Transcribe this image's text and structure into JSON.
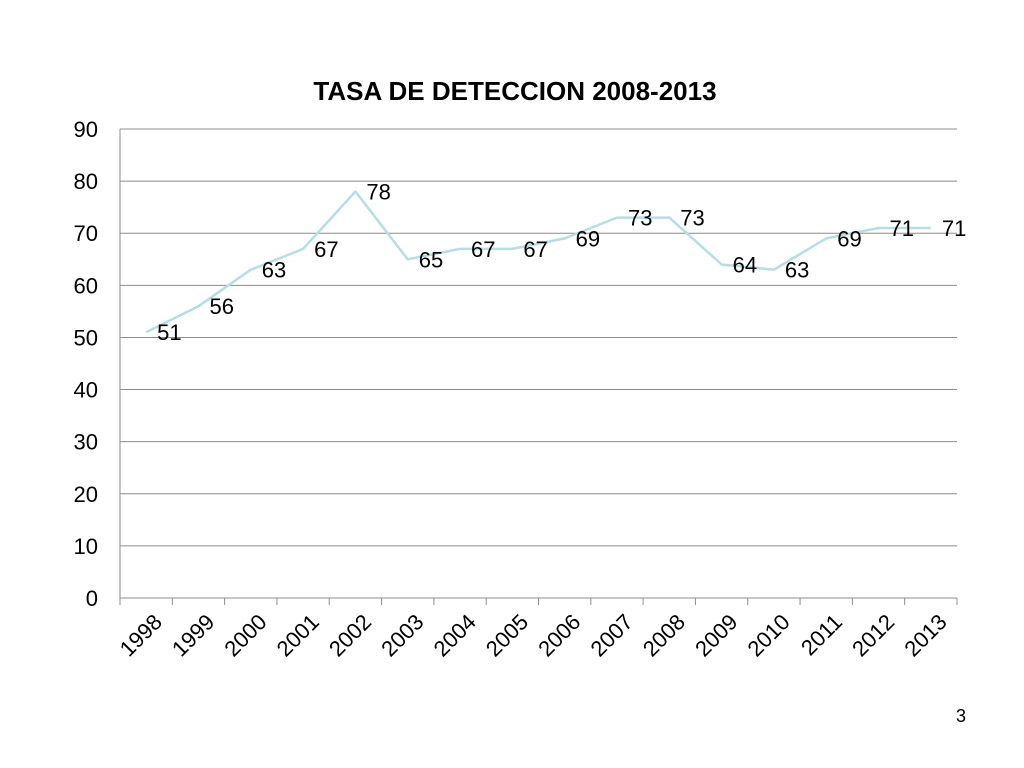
{
  "page_number": "3",
  "chart_data": {
    "type": "line",
    "title": "TASA DE DETECCION 2008-2013",
    "xlabel": "",
    "ylabel": "",
    "categories": [
      "1998",
      "1999",
      "2000",
      "2001",
      "2002",
      "2003",
      "2004",
      "2005",
      "2006",
      "2007",
      "2008",
      "2009",
      "2010",
      "2011",
      "2012",
      "2013"
    ],
    "series": [
      {
        "values": [
          51,
          56,
          63,
          67,
          78,
          65,
          67,
          67,
          69,
          73,
          73,
          64,
          63,
          69,
          71,
          71
        ],
        "color": "#b7dde3"
      }
    ],
    "data_labels": [
      "51",
      "56",
      "63",
      "67",
      "78",
      "65",
      "67",
      "67",
      "69",
      "73",
      "73",
      "64",
      "63",
      "69",
      "71",
      "71"
    ],
    "ylim": [
      0,
      90
    ],
    "yticks": [
      "0",
      "10",
      "20",
      "30",
      "40",
      "50",
      "60",
      "70",
      "80",
      "90"
    ],
    "grid": true,
    "legend": "none"
  }
}
